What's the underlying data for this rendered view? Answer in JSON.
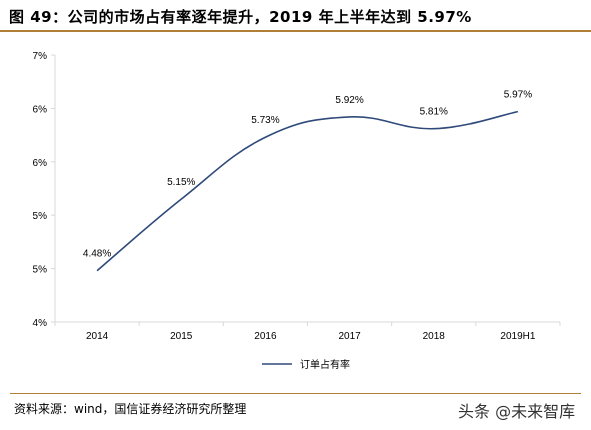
{
  "figure": {
    "title": "图 49：公司的市场占有率逐年提升，2019 年上半年达到 5.97%",
    "source": "资料来源：wind，国信证券经济研究所整理",
    "watermark": "头条 @未来智库"
  },
  "chart_data": {
    "type": "line",
    "categories": [
      "2014",
      "2015",
      "2016",
      "2017",
      "2018",
      "2019H1"
    ],
    "series": [
      {
        "name": "订单占有率",
        "values": [
          4.48,
          5.15,
          5.73,
          5.92,
          5.81,
          5.97
        ],
        "data_labels": [
          "4.48%",
          "5.15%",
          "5.73%",
          "5.92%",
          "5.81%",
          "5.97%"
        ],
        "color": "#2f4a7a"
      }
    ],
    "y_ticks": [
      "7%",
      "6%",
      "6%",
      "5%",
      "5%",
      "4%"
    ],
    "ylim": [
      4.0,
      6.5
    ],
    "grid": false,
    "legend": "bottom-center",
    "axis_color": "#d9d9d9"
  }
}
